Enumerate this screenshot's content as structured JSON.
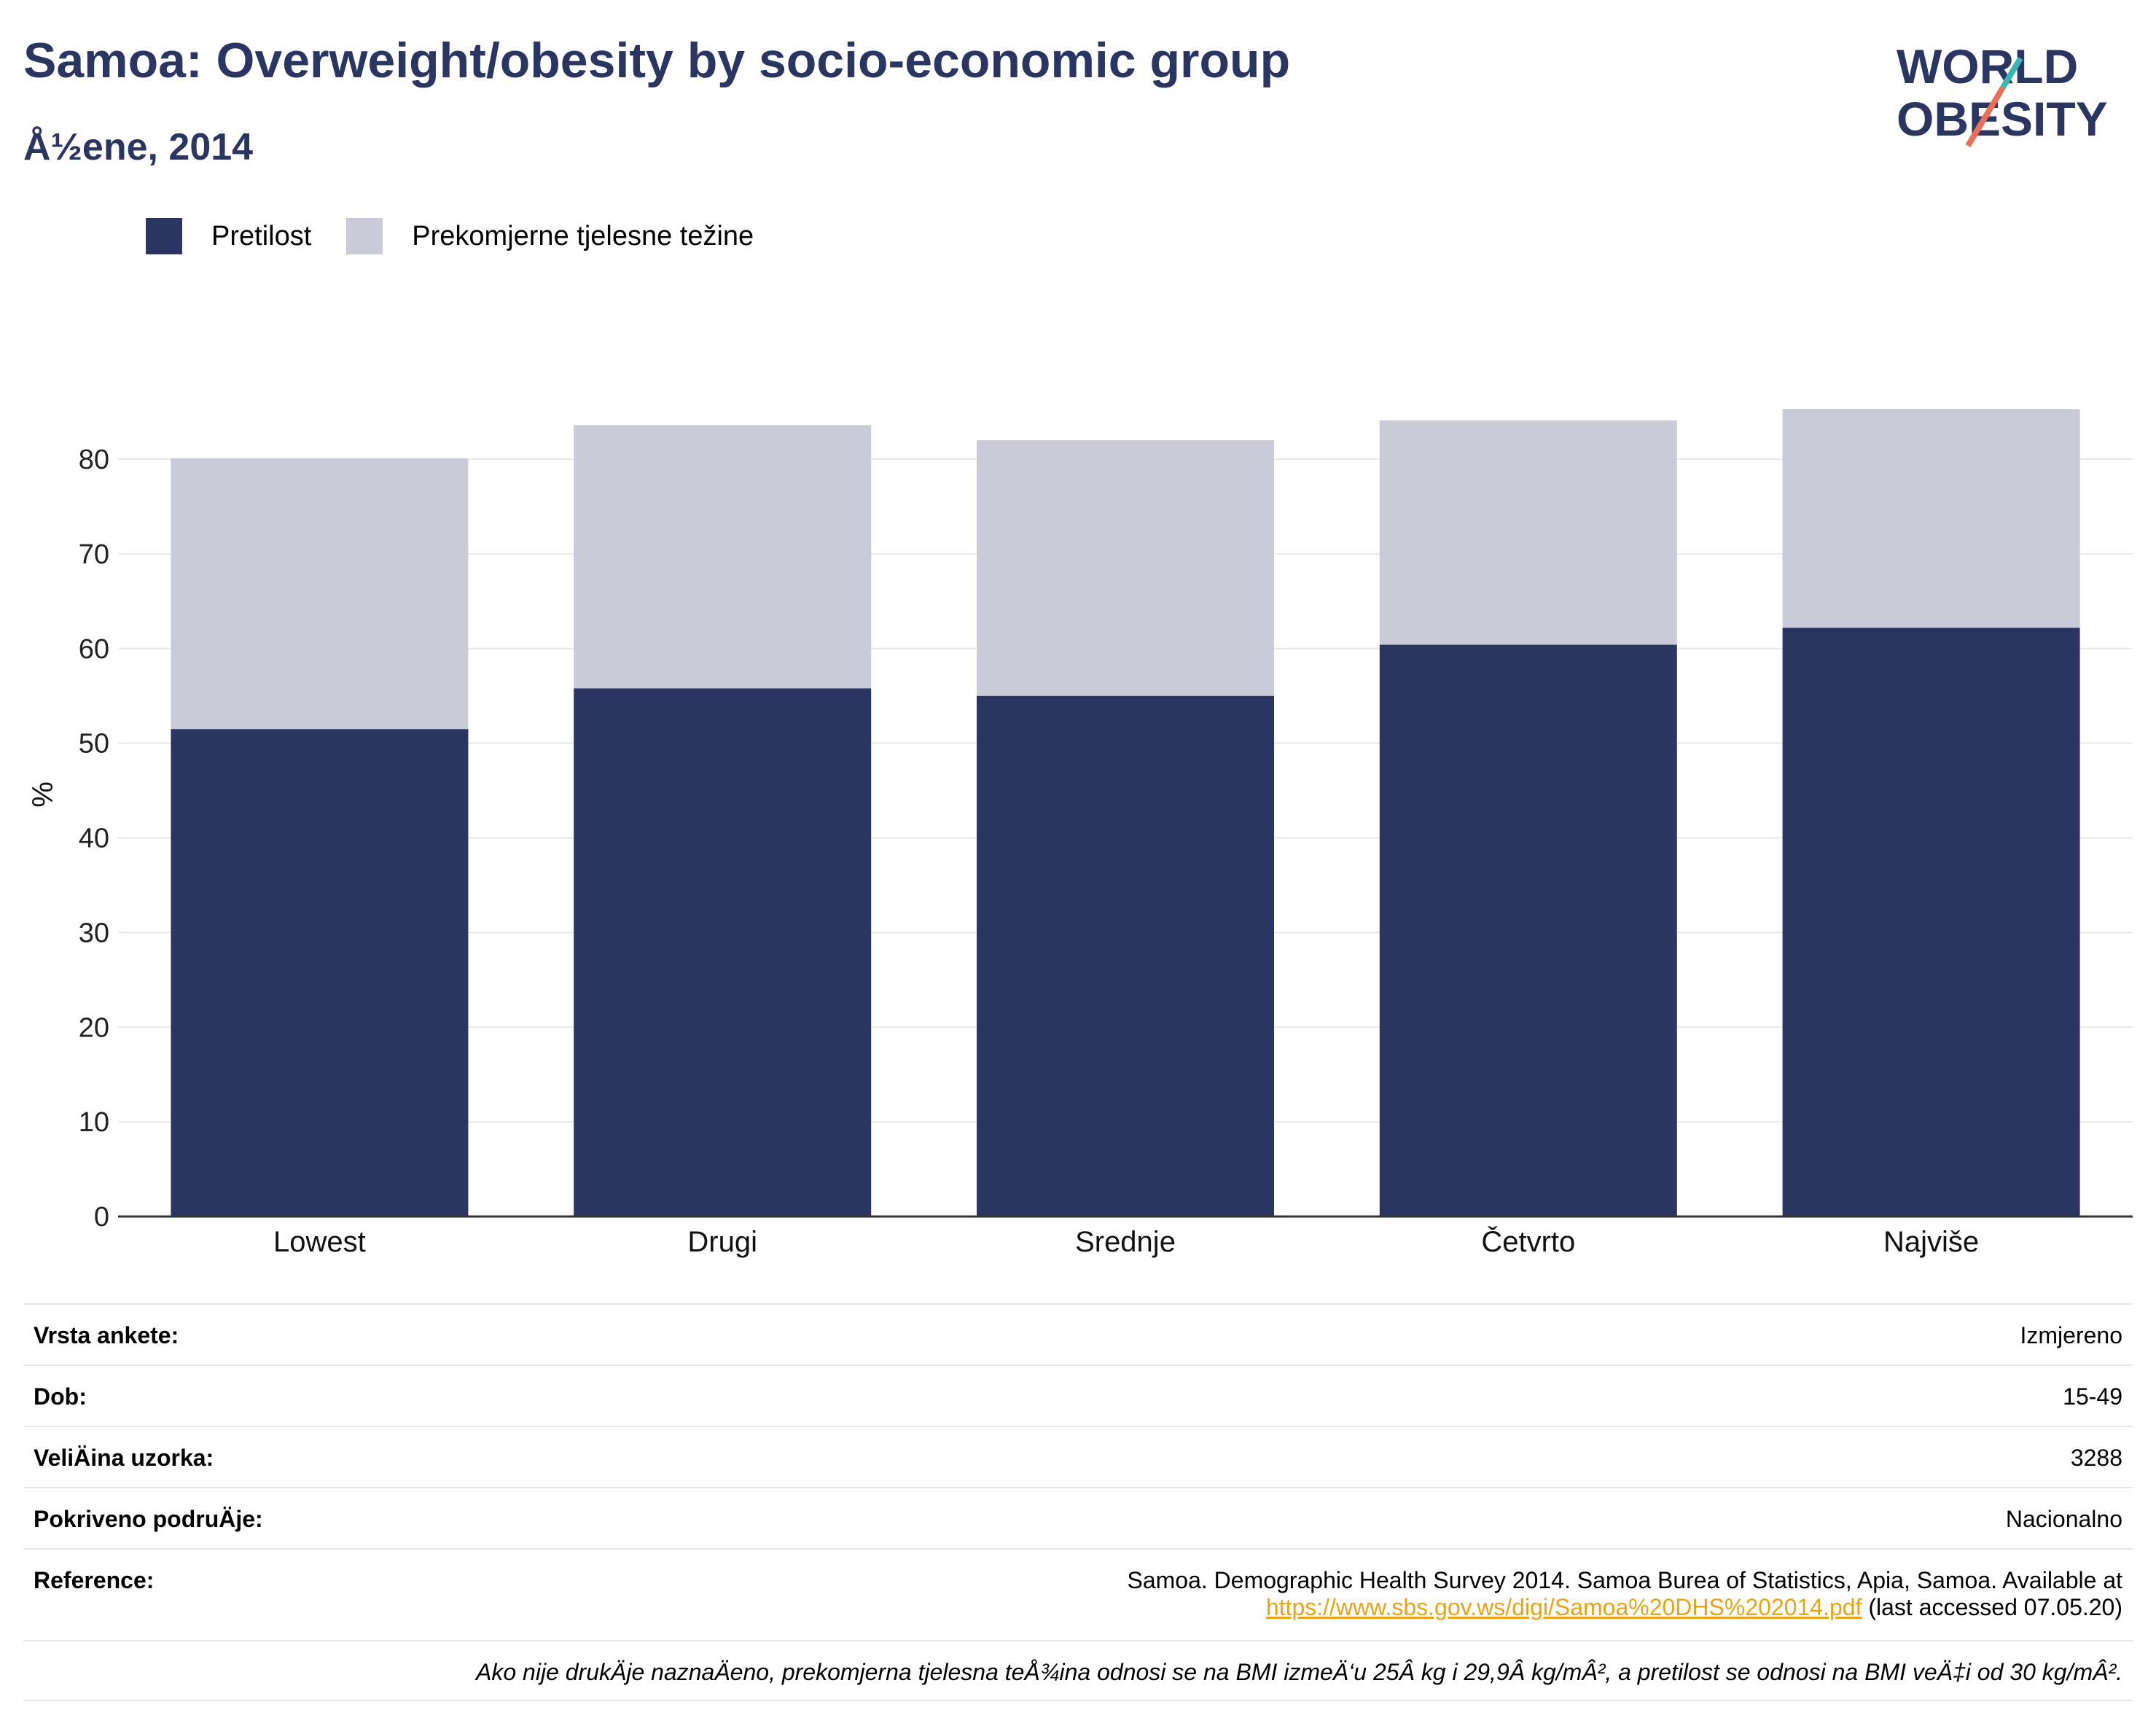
{
  "header": {
    "title": "Samoa: Overweight/obesity by socio-economic group",
    "subtitle": "Å½ene, 2014"
  },
  "logo": {
    "line1": "WORLD",
    "line2": "OBESITY"
  },
  "colors": {
    "obesity": "#2a3561",
    "overweight": "#c9ccd8",
    "title": "#2a3561",
    "link": "#e8a317"
  },
  "chart_data": {
    "type": "bar",
    "stacked": true,
    "categories": [
      "Lowest",
      "Drugi",
      "Srednje",
      "Četvrto",
      "Najviše"
    ],
    "series": [
      {
        "name": "Pretilost",
        "values": [
          51.5,
          55.8,
          55.0,
          60.4,
          62.2
        ]
      },
      {
        "name": "Prekomjerne tjelesne težine",
        "values": [
          28.6,
          27.8,
          27.0,
          23.7,
          23.1
        ]
      }
    ],
    "ylabel": "%",
    "ylim": [
      0,
      90
    ],
    "yticks": [
      0,
      10,
      20,
      30,
      40,
      50,
      60,
      70,
      80
    ],
    "grid": true,
    "legend_position": "top-left"
  },
  "info": {
    "rows": [
      {
        "label": "Vrsta ankete:",
        "value": "Izmjereno"
      },
      {
        "label": "Dob:",
        "value": "15-49"
      },
      {
        "label": "VeliÄ\u001fina uzorka:",
        "value": "3288"
      },
      {
        "label": "Pokriveno podruÄ\u001fje:",
        "value": "Nacionalno"
      }
    ],
    "reference_label": "Reference:",
    "reference_text": "Samoa. Demographic Health Survey 2014. Samoa Burea of Statistics, Apia, Samoa. Available at",
    "reference_link": "https://www.sbs.gov.ws/digi/Samoa%20DHS%202014.pdf",
    "reference_suffix": "(last accessed 07.05.20)",
    "note": "Ako nije drukÄ\u001fje naznaÄ\u001feno, prekomjerna tjelesna teÅ¾ina odnosi se na BMI izmeÄ‘u 25Â kg i 29,9Â kg/mÂ², a pretilost se odnosi na BMI veÄ‡i od 30 kg/mÂ²."
  }
}
